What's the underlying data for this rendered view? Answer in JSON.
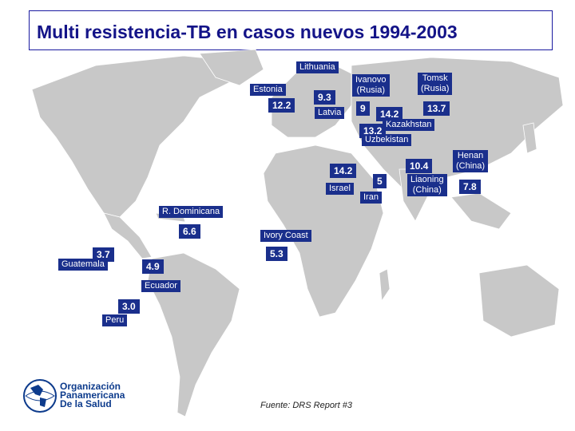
{
  "title": "Multi resistencia-TB en casos nuevos 1994-2003",
  "source": "Fuente: DRS Report #3",
  "logo": {
    "line1": "Organización",
    "line2": "Panamericana",
    "line3": "De la Salud"
  },
  "colors": {
    "label_bg": "#1a2f8c",
    "title": "#141488",
    "land": "#c8c8c8"
  },
  "regions": {
    "lithuania": {
      "name": "Lithuania"
    },
    "estonia": {
      "name": "Estonia",
      "value": "12.2"
    },
    "latvia": {
      "name": "Latvia",
      "value": "9.3"
    },
    "ivanovo": {
      "name": "Ivanovo\n(Rusia)",
      "value": "9"
    },
    "tomsk": {
      "name": "Tomsk\n(Rusia)",
      "value": "13.7"
    },
    "kazakhstan": {
      "name": "Kazakhstan",
      "value": "14.2"
    },
    "uzbekistan": {
      "name": "Uzbekistan",
      "value": "13.2"
    },
    "israel": {
      "name": "Israel",
      "value": "14.2"
    },
    "iran": {
      "name": "Iran",
      "value": "5"
    },
    "henan": {
      "name": "Henan\n(China)",
      "value": "10.4"
    },
    "liaoning": {
      "name": "Liaoning\n(China)",
      "value": "7.8"
    },
    "dominicana": {
      "name": "R. Dominicana",
      "value": "6.6"
    },
    "ivory_coast": {
      "name": "Ivory Coast",
      "value": "5.3"
    },
    "guatemala": {
      "name": "Guatemala",
      "value": "3.7"
    },
    "ecuador": {
      "name": "Ecuador",
      "value": "4.9"
    },
    "peru": {
      "name": "Peru",
      "value": "3.0"
    }
  }
}
